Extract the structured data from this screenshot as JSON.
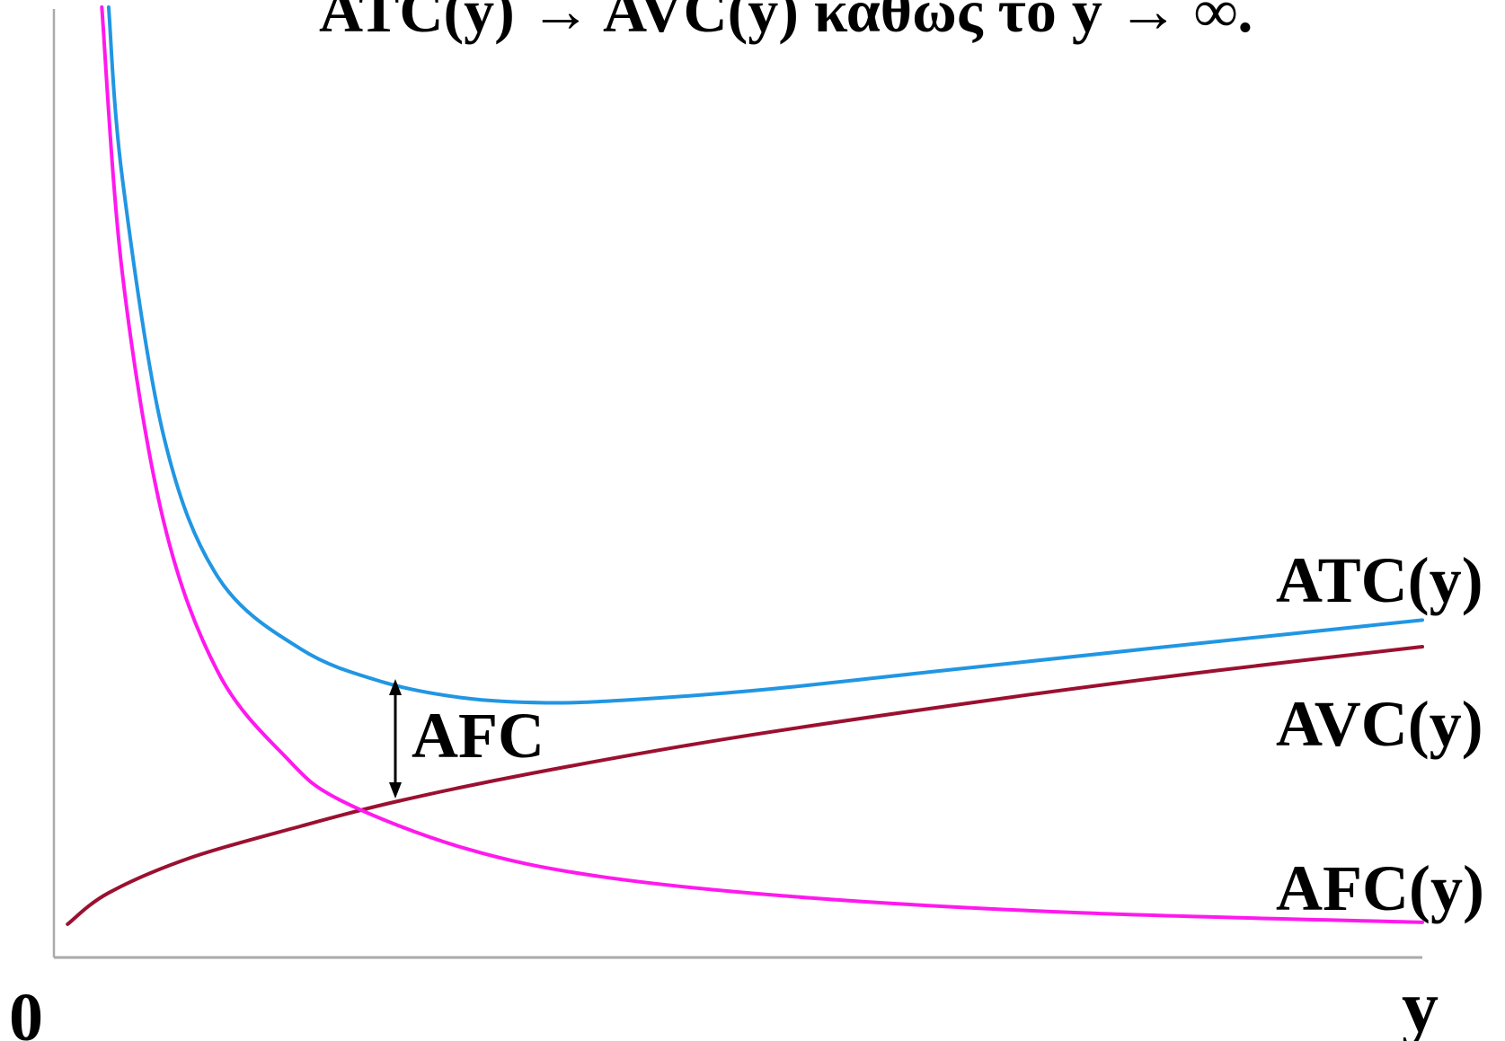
{
  "chart_data": {
    "type": "line",
    "title": "ATC(y) → AVC(y) καθώς το y → ∞.",
    "xlabel": "y",
    "origin_label": "0",
    "gap_label": "AFC",
    "axes": {
      "grid": false,
      "x_ticks": false,
      "y_ticks": false
    },
    "series": [
      {
        "name": "ATC(y)",
        "color": "#2196E3",
        "points": [
          [
            0.04,
            100
          ],
          [
            0.05,
            82
          ],
          [
            0.08,
            55
          ],
          [
            0.12,
            40
          ],
          [
            0.18,
            32.5
          ],
          [
            0.24,
            29
          ],
          [
            0.3,
            27.3
          ],
          [
            0.36,
            26.8
          ],
          [
            0.42,
            27.1
          ],
          [
            0.52,
            28.2
          ],
          [
            0.65,
            30.2
          ],
          [
            0.8,
            32.5
          ],
          [
            1.0,
            35.5
          ]
        ]
      },
      {
        "name": "AVC(y)",
        "color": "#9B1030",
        "points": [
          [
            0.01,
            3.5
          ],
          [
            0.04,
            6.8
          ],
          [
            0.1,
            10.5
          ],
          [
            0.18,
            13.8
          ],
          [
            0.25,
            16.4
          ],
          [
            0.35,
            19.4
          ],
          [
            0.5,
            23.2
          ],
          [
            0.7,
            27.4
          ],
          [
            0.85,
            30.2
          ],
          [
            1.0,
            32.7
          ]
        ]
      },
      {
        "name": "AFC(y)",
        "color": "#FF19EE",
        "points": [
          [
            0.035,
            100
          ],
          [
            0.05,
            72
          ],
          [
            0.08,
            46
          ],
          [
            0.12,
            30
          ],
          [
            0.17,
            21
          ],
          [
            0.21,
            16.5
          ],
          [
            0.3,
            11.5
          ],
          [
            0.4,
            8.5
          ],
          [
            0.55,
            6.3
          ],
          [
            0.75,
            4.7
          ],
          [
            1.0,
            3.7
          ]
        ]
      }
    ]
  }
}
